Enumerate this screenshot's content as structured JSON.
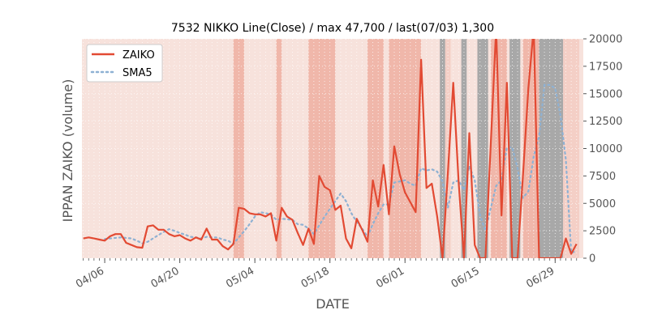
{
  "chart_data": {
    "type": "line",
    "title": "7532 NIKKO Line(Close) / max 47,700 / last(07/03) 1,300",
    "xlabel": "DATE",
    "ylabel": "IPPAN ZAIKO (volume)",
    "ylim": [
      0,
      20000
    ],
    "yticks": [
      0,
      2500,
      5000,
      7500,
      10000,
      12500,
      15000,
      17500,
      20000
    ],
    "ytick_labels": [
      "0",
      "2500",
      "5000",
      "7500",
      "10000",
      "12500",
      "15000",
      "17500",
      "20000"
    ],
    "xticks": [
      {
        "day": 4,
        "label": "04/06"
      },
      {
        "day": 18,
        "label": "04/20"
      },
      {
        "day": 32,
        "label": "05/04"
      },
      {
        "day": 46,
        "label": "05/18"
      },
      {
        "day": 60,
        "label": "06/01"
      },
      {
        "day": 74,
        "label": "06/15"
      },
      {
        "day": 88,
        "label": "06/29"
      }
    ],
    "x_start": "04/02",
    "x_end": "07/03",
    "legend_position": "upper-left",
    "grid": true,
    "colors": {
      "ZAIKO": "#e24a33",
      "SMA5": "#8eb1d3",
      "background": "#f7e2dc",
      "band_light": "#f4cfc6",
      "band_mid": "#f0b7aa",
      "band_dark": "#a8a8a8"
    },
    "series": [
      {
        "name": "ZAIKO",
        "style": "solid",
        "points": [
          [
            0,
            1800
          ],
          [
            1,
            1900
          ],
          [
            2,
            1800
          ],
          [
            3,
            1700
          ],
          [
            4,
            1600
          ],
          [
            5,
            2000
          ],
          [
            6,
            2200
          ],
          [
            7,
            2200
          ],
          [
            8,
            1400
          ],
          [
            9,
            1200
          ],
          [
            10,
            1000
          ],
          [
            11,
            950
          ],
          [
            12,
            2900
          ],
          [
            13,
            3000
          ],
          [
            14,
            2600
          ],
          [
            15,
            2600
          ],
          [
            16,
            2200
          ],
          [
            17,
            2000
          ],
          [
            18,
            2100
          ],
          [
            19,
            1800
          ],
          [
            20,
            1600
          ],
          [
            21,
            1900
          ],
          [
            22,
            1700
          ],
          [
            23,
            2700
          ],
          [
            24,
            1700
          ],
          [
            25,
            1700
          ],
          [
            26,
            1100
          ],
          [
            27,
            800
          ],
          [
            28,
            1300
          ],
          [
            29,
            4600
          ],
          [
            30,
            4500
          ],
          [
            31,
            4100
          ],
          [
            32,
            4000
          ],
          [
            33,
            4000
          ],
          [
            34,
            3800
          ],
          [
            35,
            4100
          ],
          [
            36,
            1600
          ],
          [
            37,
            4600
          ],
          [
            38,
            3800
          ],
          [
            39,
            3500
          ],
          [
            40,
            2300
          ],
          [
            41,
            1200
          ],
          [
            42,
            2700
          ],
          [
            43,
            1300
          ],
          [
            44,
            7500
          ],
          [
            45,
            6500
          ],
          [
            46,
            6200
          ],
          [
            47,
            4400
          ],
          [
            48,
            4800
          ],
          [
            49,
            1800
          ],
          [
            50,
            900
          ],
          [
            51,
            3600
          ],
          [
            52,
            2600
          ],
          [
            53,
            1500
          ],
          [
            54,
            7100
          ],
          [
            55,
            4700
          ],
          [
            56,
            8500
          ],
          [
            57,
            4000
          ],
          [
            58,
            10200
          ],
          [
            59,
            7700
          ],
          [
            60,
            6000
          ],
          [
            61,
            5100
          ],
          [
            62,
            4200
          ],
          [
            63,
            18100
          ],
          [
            64,
            6400
          ],
          [
            65,
            6800
          ],
          [
            66,
            3800
          ],
          [
            67,
            0
          ],
          [
            68,
            7800
          ],
          [
            69,
            16000
          ],
          [
            70,
            7000
          ],
          [
            71,
            0
          ],
          [
            72,
            11400
          ],
          [
            73,
            1200
          ],
          [
            74,
            0
          ],
          [
            75,
            0
          ],
          [
            76,
            10500
          ],
          [
            77,
            21000
          ],
          [
            78,
            3900
          ],
          [
            79,
            16000
          ],
          [
            80,
            0
          ],
          [
            81,
            0
          ],
          [
            82,
            7500
          ],
          [
            83,
            15500
          ],
          [
            84,
            21000
          ],
          [
            85,
            0
          ],
          [
            86,
            0
          ],
          [
            87,
            0
          ],
          [
            88,
            0
          ],
          [
            89,
            0
          ],
          [
            90,
            1800
          ],
          [
            91,
            400
          ],
          [
            92,
            1300
          ]
        ]
      },
      {
        "name": "SMA5",
        "style": "dotted",
        "points": [
          [
            4,
            1750
          ],
          [
            5,
            1800
          ],
          [
            6,
            1850
          ],
          [
            7,
            1900
          ],
          [
            8,
            1850
          ],
          [
            9,
            1800
          ],
          [
            10,
            1600
          ],
          [
            11,
            1350
          ],
          [
            12,
            1500
          ],
          [
            13,
            1800
          ],
          [
            14,
            2100
          ],
          [
            15,
            2400
          ],
          [
            16,
            2650
          ],
          [
            17,
            2500
          ],
          [
            18,
            2300
          ],
          [
            19,
            2150
          ],
          [
            20,
            1950
          ],
          [
            21,
            1900
          ],
          [
            22,
            1800
          ],
          [
            23,
            1950
          ],
          [
            24,
            1900
          ],
          [
            25,
            1900
          ],
          [
            26,
            1700
          ],
          [
            27,
            1600
          ],
          [
            28,
            1300
          ],
          [
            29,
            1900
          ],
          [
            30,
            2450
          ],
          [
            31,
            3100
          ],
          [
            32,
            3800
          ],
          [
            33,
            4200
          ],
          [
            34,
            4100
          ],
          [
            35,
            4000
          ],
          [
            36,
            3500
          ],
          [
            37,
            3600
          ],
          [
            38,
            3550
          ],
          [
            39,
            3500
          ],
          [
            40,
            3100
          ],
          [
            41,
            3050
          ],
          [
            42,
            2700
          ],
          [
            43,
            2200
          ],
          [
            44,
            3000
          ],
          [
            45,
            3800
          ],
          [
            46,
            4500
          ],
          [
            47,
            5200
          ],
          [
            48,
            5900
          ],
          [
            49,
            5200
          ],
          [
            50,
            4100
          ],
          [
            51,
            3300
          ],
          [
            52,
            2700
          ],
          [
            53,
            1950
          ],
          [
            54,
            3100
          ],
          [
            55,
            4100
          ],
          [
            56,
            4900
          ],
          [
            57,
            4900
          ],
          [
            58,
            6900
          ],
          [
            59,
            7000
          ],
          [
            60,
            7100
          ],
          [
            61,
            6800
          ],
          [
            62,
            6600
          ],
          [
            63,
            8200
          ],
          [
            64,
            8000
          ],
          [
            65,
            8100
          ],
          [
            66,
            7900
          ],
          [
            67,
            7000
          ],
          [
            68,
            4600
          ],
          [
            69,
            6900
          ],
          [
            70,
            7100
          ],
          [
            71,
            6200
          ],
          [
            72,
            8400
          ],
          [
            73,
            7100
          ],
          [
            74,
            3900
          ],
          [
            75,
            2500
          ],
          [
            76,
            4600
          ],
          [
            77,
            6600
          ],
          [
            78,
            7100
          ],
          [
            79,
            10100
          ],
          [
            80,
            10100
          ],
          [
            81,
            8200
          ],
          [
            82,
            5500
          ],
          [
            83,
            6100
          ],
          [
            84,
            9300
          ],
          [
            85,
            11100
          ],
          [
            86,
            15800
          ],
          [
            87,
            15800
          ],
          [
            88,
            15500
          ],
          [
            89,
            13000
          ],
          [
            90,
            9000
          ],
          [
            91,
            500
          ],
          [
            92,
            650
          ]
        ]
      }
    ],
    "background_bands": [
      {
        "from": 28,
        "to": 30,
        "level": "mid"
      },
      {
        "from": 36,
        "to": 37,
        "level": "mid"
      },
      {
        "from": 42,
        "to": 47,
        "level": "mid"
      },
      {
        "from": 53,
        "to": 56,
        "level": "mid"
      },
      {
        "from": 57,
        "to": 62,
        "level": "mid"
      },
      {
        "from": 62,
        "to": 63,
        "level": "mid"
      },
      {
        "from": 66.5,
        "to": 67.5,
        "level": "dark"
      },
      {
        "from": 67.5,
        "to": 68.5,
        "level": "light"
      },
      {
        "from": 70.5,
        "to": 71.5,
        "level": "dark"
      },
      {
        "from": 73.5,
        "to": 75.5,
        "level": "dark"
      },
      {
        "from": 76,
        "to": 79,
        "level": "mid"
      },
      {
        "from": 79.5,
        "to": 81.5,
        "level": "dark"
      },
      {
        "from": 82,
        "to": 85,
        "level": "mid"
      },
      {
        "from": 85,
        "to": 89.5,
        "level": "dark"
      },
      {
        "from": 89.5,
        "to": 92.5,
        "level": "light"
      }
    ]
  }
}
